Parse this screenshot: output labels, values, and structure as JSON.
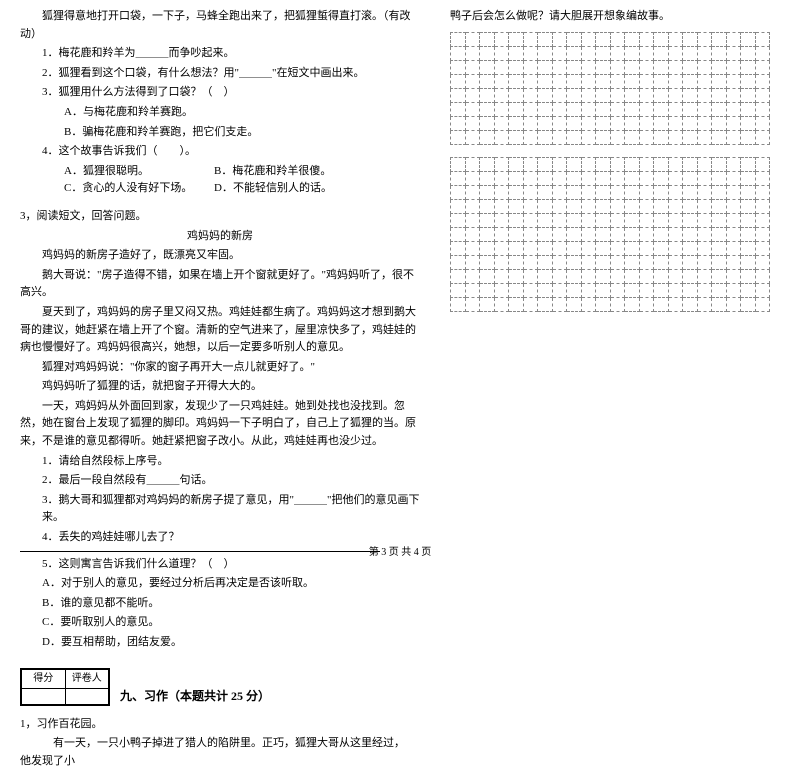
{
  "left": {
    "p1": "狐狸得意地打开口袋，一下子，马蜂全跑出来了，把狐狸蜇得直打滚。（有改动）",
    "q1": "1．梅花鹿和羚羊为＿＿＿而争吵起来。",
    "q2": "2．狐狸看到这个口袋，有什么想法？用\"＿＿＿\"在短文中画出来。",
    "q3": "3．狐狸用什么方法得到了口袋？（　）",
    "q3a": "A．与梅花鹿和羚羊赛跑。",
    "q3b": "B．骗梅花鹿和羚羊赛跑，把它们支走。",
    "q4": "4．这个故事告诉我们（　　）。",
    "q4a": "A．狐狸很聪明。",
    "q4b": "B．梅花鹿和羚羊很傻。",
    "q4c": "C．贪心的人没有好下场。",
    "q4d": "D．不能轻信别人的话。",
    "r3title": "3，阅读短文，回答问题。",
    "storyTitle": "鸡妈妈的新房",
    "s1": "鸡妈妈的新房子造好了，既漂亮又牢固。",
    "s2": "鹅大哥说：\"房子造得不错，如果在墙上开个窗就更好了。\"鸡妈妈听了，很不高兴。",
    "s3": "夏天到了，鸡妈妈的房子里又闷又热。鸡娃娃都生病了。鸡妈妈这才想到鹅大哥的建议，她赶紧在墙上开了个窗。清新的空气进来了，屋里凉快多了，鸡娃娃的病也慢慢好了。鸡妈妈很高兴，她想，以后一定要多听别人的意见。",
    "s4": "狐狸对鸡妈妈说：\"你家的窗子再开大一点儿就更好了。\"",
    "s5": "鸡妈妈听了狐狸的话，就把窗子开得大大的。",
    "s6": "一天，鸡妈妈从外面回到家，发现少了一只鸡娃娃。她到处找也没找到。忽然，她在窗台上发现了狐狸的脚印。鸡妈妈一下子明白了，自己上了狐狸的当。原来，不是谁的意见都得听。她赶紧把窗子改小。从此，鸡娃娃再也没少过。",
    "rq1": "1．请给自然段标上序号。",
    "rq2": "2．最后一段自然段有＿＿＿句话。",
    "rq3": "3．鹅大哥和狐狸都对鸡妈妈的新房子提了意见，用\"＿＿＿\"把他们的意见画下来。",
    "rq4": "4．丢失的鸡娃娃哪儿去了？",
    "rq5": "5．这则寓言告诉我们什么道理？（　）",
    "rq5a": "A．对于别人的意见，要经过分析后再决定是否该听取。",
    "rq5b": "B．谁的意见都不能听。",
    "rq5c": "C．要听取别人的意见。",
    "rq5d": "D．要互相帮助，团结友爱。",
    "scoreLabel1": "得分",
    "scoreLabel2": "评卷人",
    "section9": "九、习作（本题共计 25 分）",
    "w1": "1，习作百花园。",
    "w2": "有一天，一只小鸭子掉进了猎人的陷阱里。正巧，狐狸大哥从这里经过，　他发现了小"
  },
  "right": {
    "prompt": "鸭子后会怎么做呢？请大胆展开想象编故事。"
  },
  "grid": {
    "rows1": 8,
    "rows2": 11,
    "cols": 22
  },
  "footer": "第 3 页 共 4 页"
}
